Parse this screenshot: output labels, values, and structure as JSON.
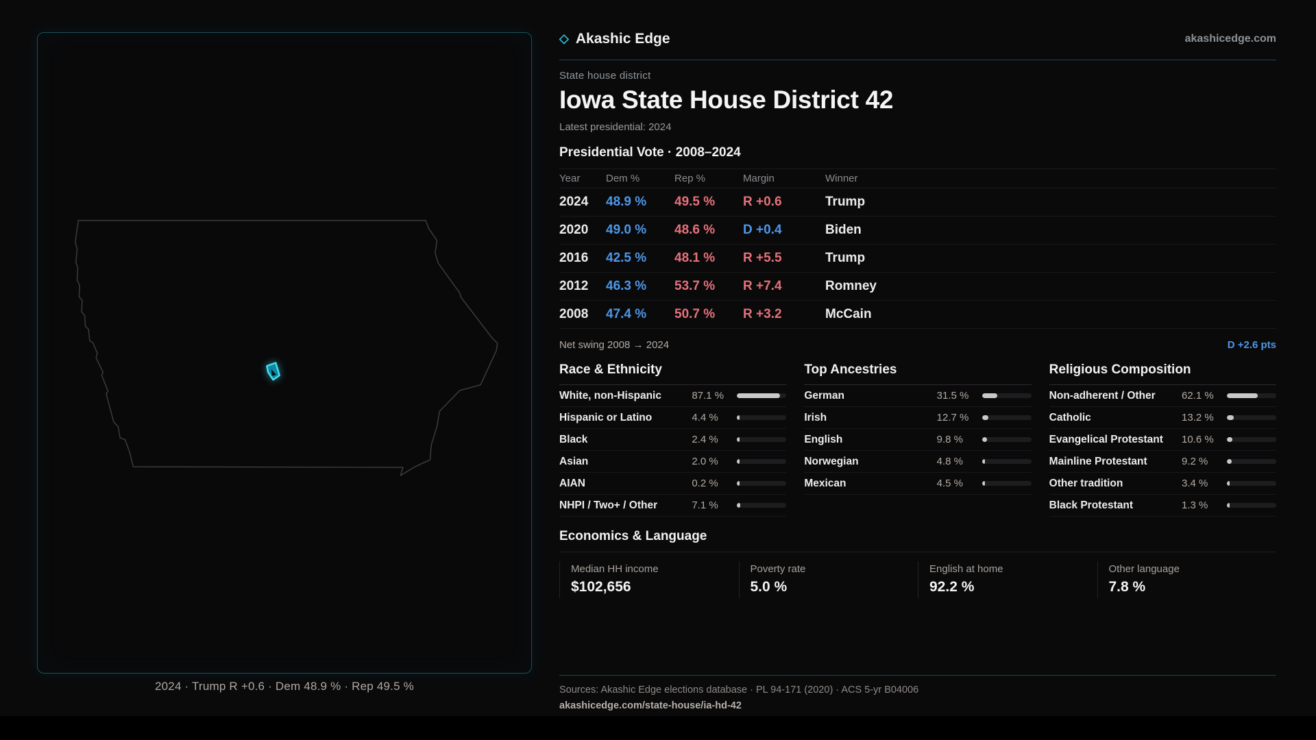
{
  "brand": {
    "name": "Akashic Edge",
    "domain": "akashicedge.com",
    "diamond_icon": "◇"
  },
  "page": {
    "eyebrow": "State house district",
    "title": "Iowa State House District 42",
    "latest_label": "Latest presidential: 2024"
  },
  "vote_table": {
    "title": "Presidential Vote · 2008–2024",
    "columns": [
      "Year",
      "Dem %",
      "Rep %",
      "Margin",
      "Winner"
    ],
    "rows": [
      {
        "year": "2024",
        "dem": "48.9 %",
        "rep": "49.5 %",
        "margin": "R +0.6",
        "margin_party": "R",
        "winner": "Trump"
      },
      {
        "year": "2020",
        "dem": "49.0 %",
        "rep": "48.6 %",
        "margin": "D +0.4",
        "margin_party": "D",
        "winner": "Biden"
      },
      {
        "year": "2016",
        "dem": "42.5 %",
        "rep": "48.1 %",
        "margin": "R +5.5",
        "margin_party": "R",
        "winner": "Trump"
      },
      {
        "year": "2012",
        "dem": "46.3 %",
        "rep": "53.7 %",
        "margin": "R +7.4",
        "margin_party": "R",
        "winner": "Romney"
      },
      {
        "year": "2008",
        "dem": "47.4 %",
        "rep": "50.7 %",
        "margin": "R +3.2",
        "margin_party": "R",
        "winner": "McCain"
      }
    ],
    "net_swing_label": "Net swing 2008 → 2024",
    "net_swing_value": "D +2.6 pts"
  },
  "demographics": [
    {
      "title": "Race & Ethnicity",
      "rows": [
        {
          "label": "White, non-Hispanic",
          "value": "87.1 %",
          "pct": 87.1
        },
        {
          "label": "Hispanic or Latino",
          "value": "4.4 %",
          "pct": 4.4
        },
        {
          "label": "Black",
          "value": "2.4 %",
          "pct": 2.4
        },
        {
          "label": "Asian",
          "value": "2.0 %",
          "pct": 2.0
        },
        {
          "label": "AIAN",
          "value": "0.2 %",
          "pct": 0.2
        },
        {
          "label": "NHPI / Two+ / Other",
          "value": "7.1 %",
          "pct": 7.1
        }
      ]
    },
    {
      "title": "Top Ancestries",
      "rows": [
        {
          "label": "German",
          "value": "31.5 %",
          "pct": 31.5
        },
        {
          "label": "Irish",
          "value": "12.7 %",
          "pct": 12.7
        },
        {
          "label": "English",
          "value": "9.8 %",
          "pct": 9.8
        },
        {
          "label": "Norwegian",
          "value": "4.8 %",
          "pct": 4.8
        },
        {
          "label": "Mexican",
          "value": "4.5 %",
          "pct": 4.5
        }
      ]
    },
    {
      "title": "Religious Composition",
      "rows": [
        {
          "label": "Non-adherent / Other",
          "value": "62.1 %",
          "pct": 62.1
        },
        {
          "label": "Catholic",
          "value": "13.2 %",
          "pct": 13.2
        },
        {
          "label": "Evangelical Protestant",
          "value": "10.6 %",
          "pct": 10.6
        },
        {
          "label": "Mainline Protestant",
          "value": "9.2 %",
          "pct": 9.2
        },
        {
          "label": "Other tradition",
          "value": "3.4 %",
          "pct": 3.4
        },
        {
          "label": "Black Protestant",
          "value": "1.3 %",
          "pct": 1.3
        }
      ]
    }
  ],
  "economics": {
    "title": "Economics & Language",
    "stats": [
      {
        "label": "Median HH income",
        "value": "$102,656"
      },
      {
        "label": "Poverty rate",
        "value": "5.0 %"
      },
      {
        "label": "English at home",
        "value": "92.2 %"
      },
      {
        "label": "Other language",
        "value": "7.8 %"
      }
    ]
  },
  "map": {
    "caption": "2024 · Trump R +0.6 · Dem 48.9 % · Rep 49.5 %"
  },
  "footer": {
    "sources": "Sources: Akashic Edge elections database · PL 94-171 (2020) · ACS 5-yr B04006",
    "permalink": "akashicedge.com/state-house/ia-hd-42"
  },
  "colors": {
    "bg": "#0a0a0b",
    "dem_blue": "#4e97e9",
    "rep_red": "#e6717a",
    "teal_accent": "#2bbcd4",
    "teal_divider": "#164a52",
    "teal_border": "#175259",
    "marker_stroke": "#45dff2",
    "marker_fill": "#0d87a3",
    "bar_fill": "#c9c9c9",
    "bar_track": "#1d1d1f"
  }
}
